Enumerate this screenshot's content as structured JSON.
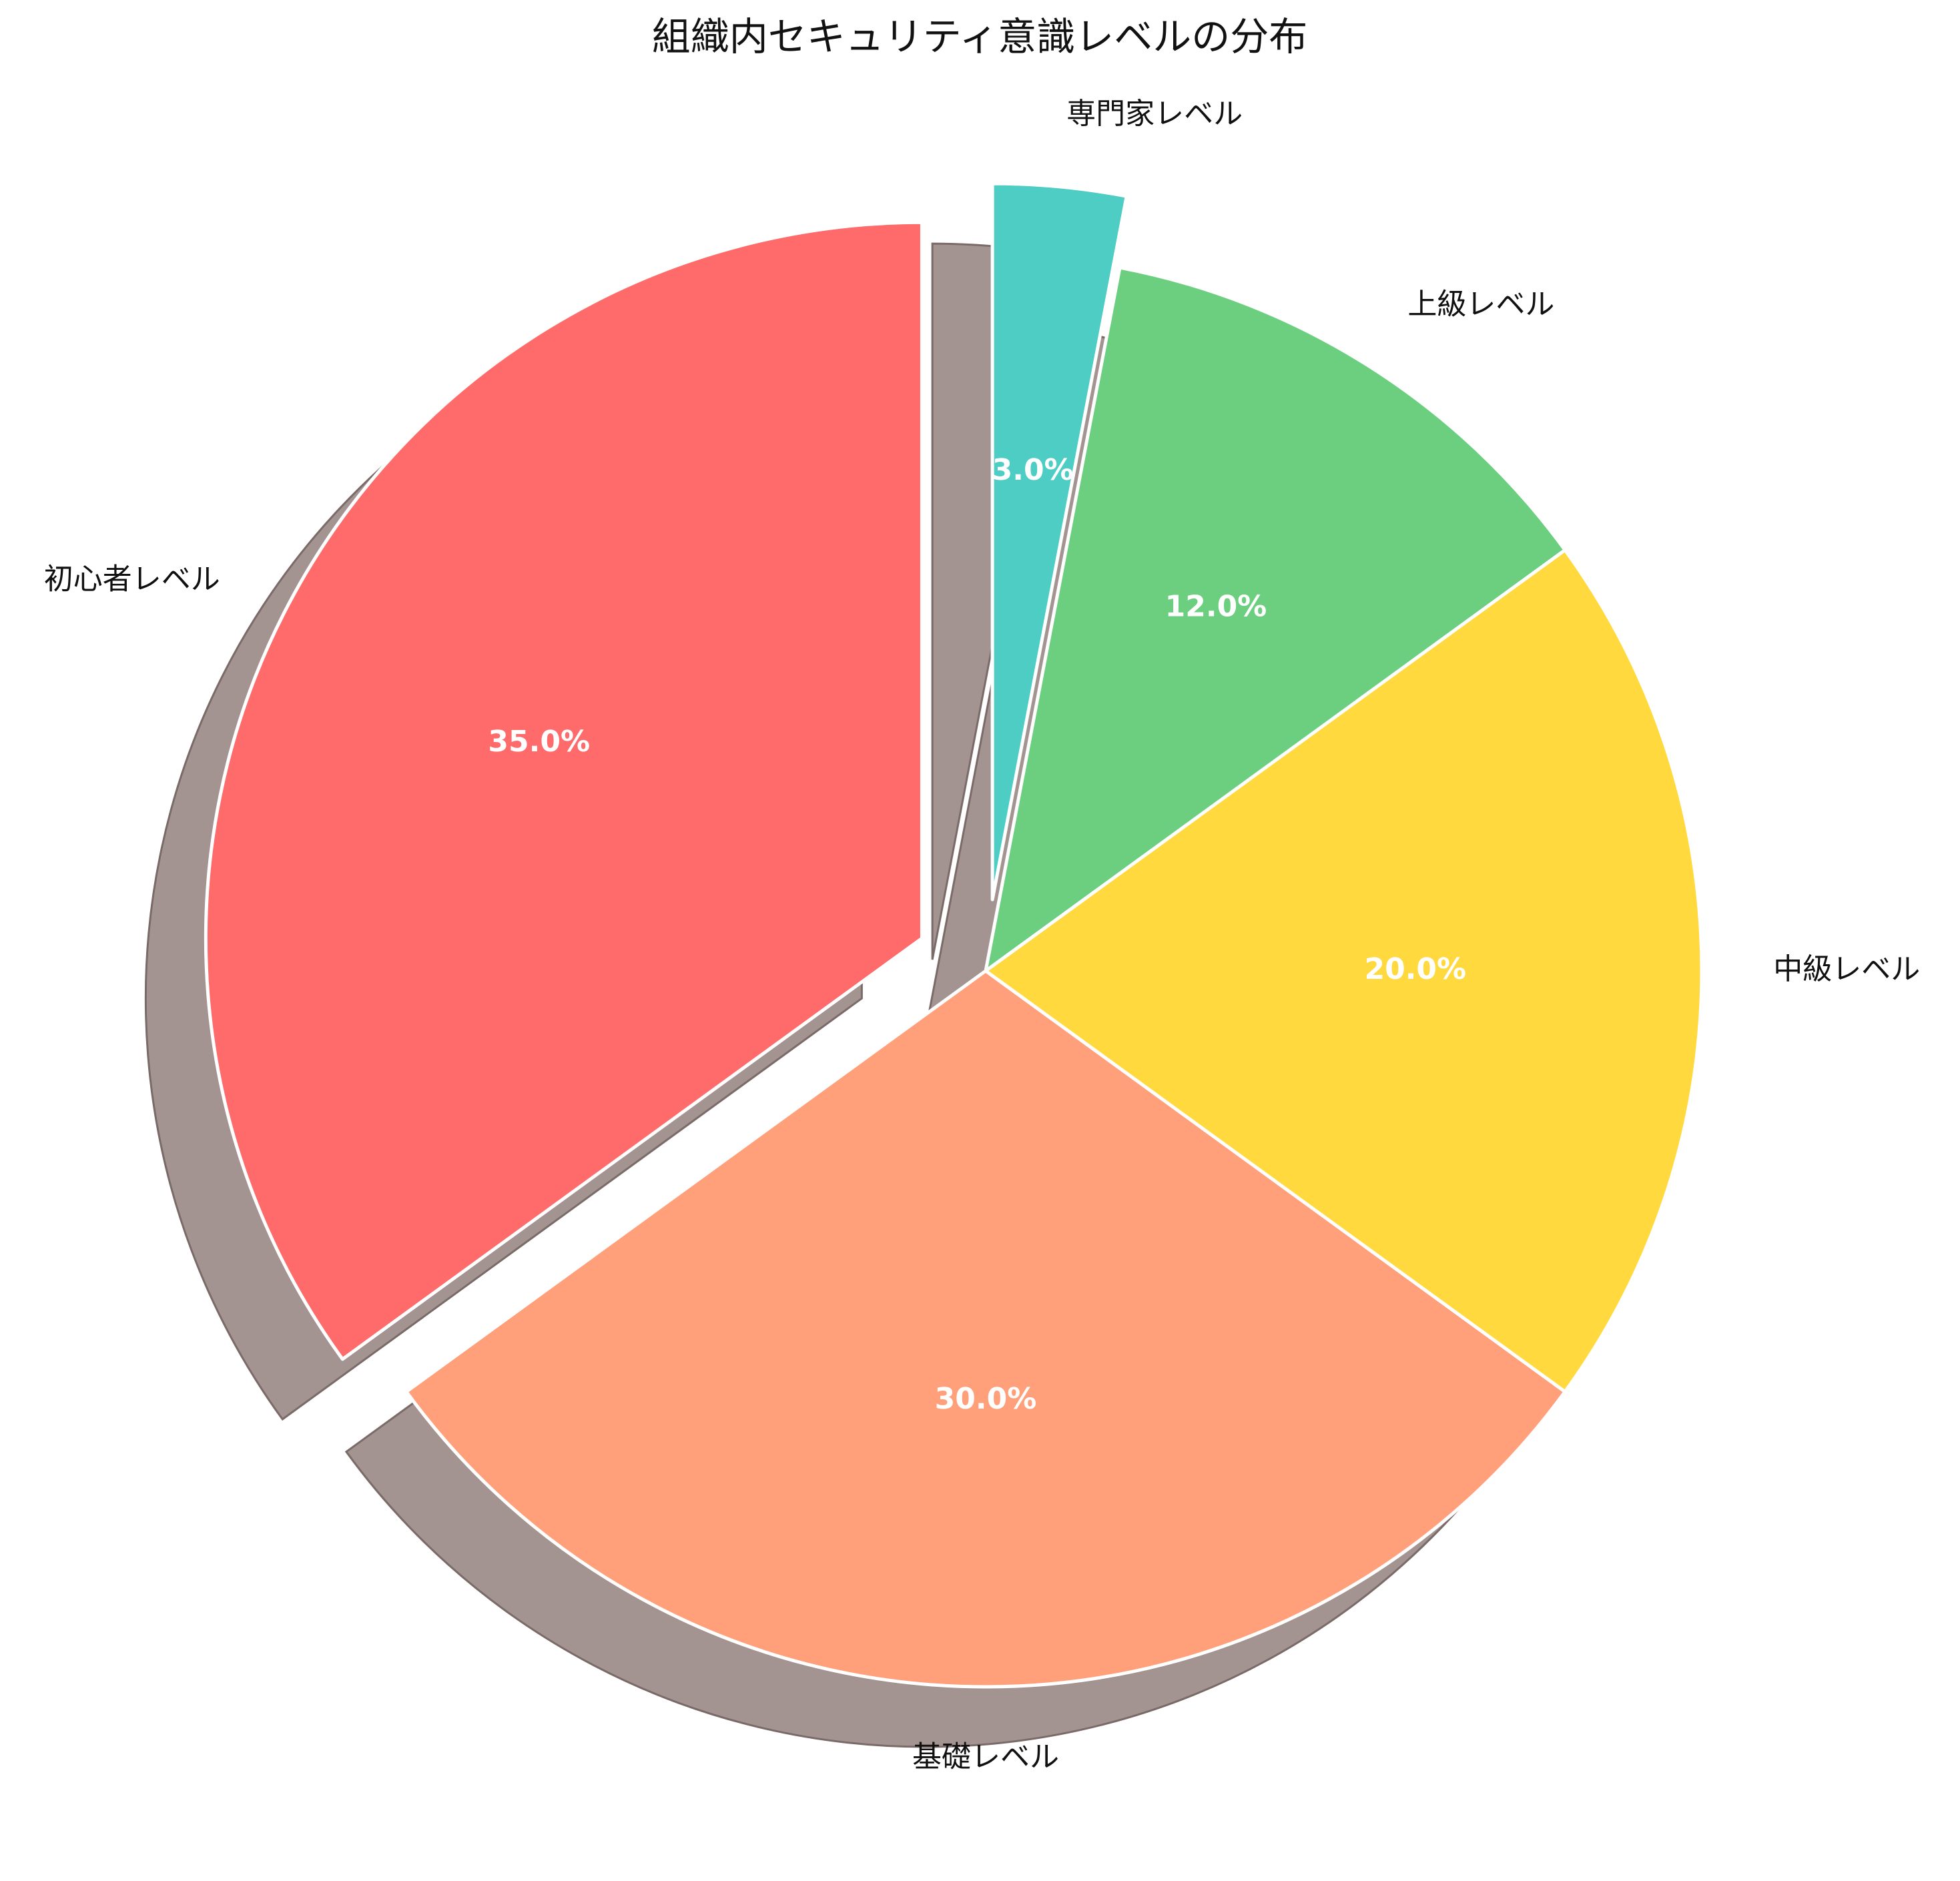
{
  "chart_data": {
    "type": "pie",
    "title": "組織内セキュリティ意識レベルの分布",
    "categories": [
      "初心者レベル",
      "基礎レベル",
      "中級レベル",
      "上級レベル",
      "専門家レベル"
    ],
    "values": [
      35.0,
      30.0,
      20.0,
      12.0,
      3.0
    ],
    "percent_labels": [
      "35.0%",
      "30.0%",
      "20.0%",
      "12.0%",
      "3.0%"
    ],
    "colors": [
      "#FF6B6B",
      "#FFA07A",
      "#FFD93D",
      "#6BCF7F",
      "#4ECDC4"
    ],
    "exploded": [
      true,
      false,
      false,
      false,
      true
    ],
    "start_angle_deg": 90,
    "direction": "counterclockwise",
    "shadow": true,
    "shadow_color": "#a39391",
    "legend": "none"
  }
}
